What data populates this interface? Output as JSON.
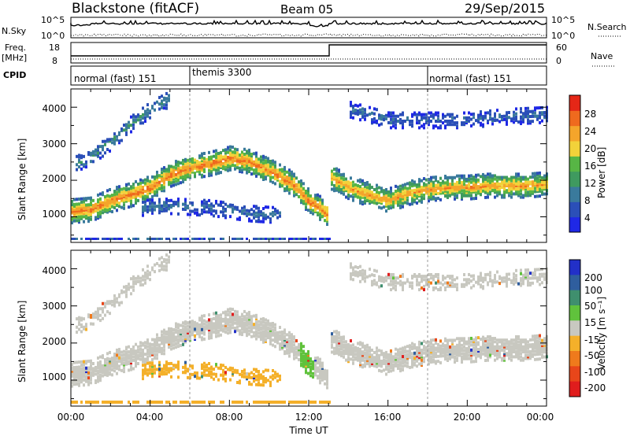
{
  "header": {
    "station": "Blackstone (fitACF)",
    "beam": "Beam 05",
    "date": "29/Sep/2015"
  },
  "top_panels": {
    "left_labels": {
      "nsky": "N.Sky",
      "nsky_t1": "10^5",
      "nsky_t0": "10^0",
      "freq": "Freq.",
      "freq_unit": "[MHz]",
      "freq_t1": "18",
      "freq_t0": "8",
      "cpid": "CPID"
    },
    "right_labels": {
      "nsearch_t1": "10^5",
      "nsearch_t0": "10^0",
      "nsearch": "N.Search",
      "nave_t1": "60",
      "nave_t0": "0",
      "nave": "Nave"
    },
    "cpid_segments": [
      {
        "label": "normal (fast) 151",
        "start": 0,
        "end": 6
      },
      {
        "label": "themis 3300",
        "start": 6,
        "end": 18
      },
      {
        "label": "normal (fast) 151",
        "start": 18,
        "end": 24
      }
    ]
  },
  "axes": {
    "ylabel": "Slant Range [km]",
    "xlabel": "Time UT",
    "yticks": [
      "1000",
      "2000",
      "3000",
      "4000"
    ],
    "xticks": [
      "00:00",
      "04:00",
      "08:00",
      "12:00",
      "16:00",
      "20:00",
      "00:00"
    ]
  },
  "colorbars": {
    "power": {
      "label": "Power [dB]",
      "ticks": [
        "4",
        "8",
        "12",
        "16",
        "20",
        "24",
        "28"
      ],
      "colors": [
        "#1f28e6",
        "#2b4fb8",
        "#3a7a9c",
        "#3f9a5f",
        "#57b545",
        "#f2d23a",
        "#f4a52b",
        "#ef6a1e",
        "#e52717"
      ]
    },
    "velocity": {
      "label": "Velocity [m s⁻¹]",
      "ticks": [
        "200",
        "100",
        "50",
        "15",
        "-15",
        "-50",
        "-100",
        "-200"
      ],
      "colors": [
        "#2230c8",
        "#2f5e9e",
        "#3f8f6e",
        "#60c23c",
        "#c8c8c0",
        "#f4b02a",
        "#ef7a1c",
        "#e8461a",
        "#e01d1d"
      ]
    }
  },
  "chart_data": {
    "type": "heatmap",
    "x_range_hours": [
      0,
      24
    ],
    "y_range_km": [
      300,
      4500
    ],
    "power_bands": [
      {
        "name": "main",
        "points": [
          [
            0,
            1200
          ],
          [
            1,
            1250
          ],
          [
            2,
            1500
          ],
          [
            3,
            1650
          ],
          [
            4,
            1850
          ],
          [
            5,
            2200
          ],
          [
            6,
            2400
          ],
          [
            7,
            2500
          ],
          [
            8,
            2650
          ],
          [
            9,
            2550
          ],
          [
            10,
            2300
          ],
          [
            11,
            2000
          ],
          [
            11.5,
            1750
          ],
          [
            12,
            1450
          ],
          [
            12.5,
            1300
          ],
          [
            12.9,
            1100
          ]
        ],
        "power": 24
      },
      {
        "name": "main-after",
        "points": [
          [
            13,
            2150
          ],
          [
            14,
            1850
          ],
          [
            15,
            1650
          ],
          [
            16,
            1500
          ],
          [
            17,
            1700
          ],
          [
            18,
            1800
          ],
          [
            19,
            1850
          ],
          [
            20,
            1850
          ],
          [
            21,
            1900
          ],
          [
            22,
            1900
          ],
          [
            23,
            1900
          ],
          [
            24,
            1950
          ]
        ],
        "power": 22
      },
      {
        "name": "upper",
        "points": [
          [
            0.2,
            2500
          ],
          [
            1,
            2700
          ],
          [
            2,
            3100
          ],
          [
            3,
            3600
          ],
          [
            4,
            4000
          ],
          [
            5,
            4300
          ]
        ],
        "power": 10
      },
      {
        "name": "mid",
        "points": [
          [
            3.5,
            1300
          ],
          [
            5,
            1350
          ],
          [
            7,
            1300
          ],
          [
            9,
            1150
          ],
          [
            10.5,
            1100
          ]
        ],
        "power": 8
      },
      {
        "name": "far",
        "points": [
          [
            14,
            4000
          ],
          [
            16,
            3700
          ],
          [
            20,
            3700
          ],
          [
            22,
            3800
          ],
          [
            24,
            3850
          ]
        ],
        "power": 7
      }
    ]
  }
}
